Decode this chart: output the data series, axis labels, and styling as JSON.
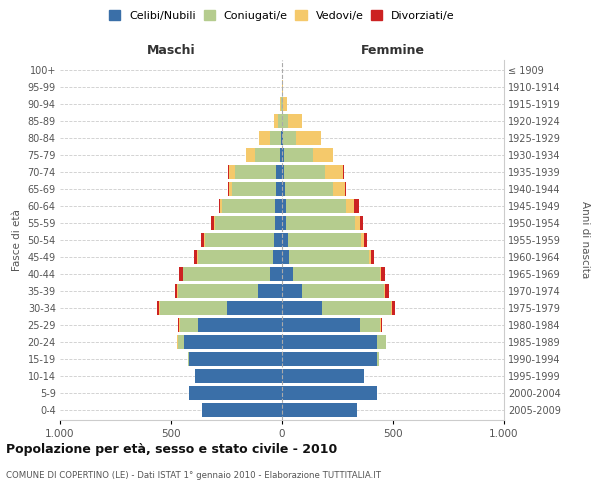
{
  "age_groups": [
    "0-4",
    "5-9",
    "10-14",
    "15-19",
    "20-24",
    "25-29",
    "30-34",
    "35-39",
    "40-44",
    "45-49",
    "50-54",
    "55-59",
    "60-64",
    "65-69",
    "70-74",
    "75-79",
    "80-84",
    "85-89",
    "90-94",
    "95-99",
    "100+"
  ],
  "birth_years": [
    "2005-2009",
    "2000-2004",
    "1995-1999",
    "1990-1994",
    "1985-1989",
    "1980-1984",
    "1975-1979",
    "1970-1974",
    "1965-1969",
    "1960-1964",
    "1955-1959",
    "1950-1954",
    "1945-1949",
    "1940-1944",
    "1935-1939",
    "1930-1934",
    "1925-1929",
    "1920-1924",
    "1915-1919",
    "1910-1914",
    "≤ 1909"
  ],
  "males": {
    "celibi": [
      360,
      420,
      390,
      420,
      440,
      380,
      250,
      110,
      55,
      40,
      35,
      30,
      30,
      25,
      25,
      10,
      5,
      2,
      1,
      0,
      0
    ],
    "coniugati": [
      0,
      0,
      0,
      5,
      30,
      80,
      300,
      360,
      390,
      340,
      310,
      270,
      240,
      200,
      185,
      110,
      50,
      15,
      3,
      1,
      0
    ],
    "vedovi": [
      0,
      0,
      0,
      0,
      5,
      5,
      5,
      2,
      2,
      3,
      5,
      6,
      8,
      15,
      30,
      40,
      50,
      20,
      4,
      1,
      0
    ],
    "divorziati": [
      0,
      0,
      0,
      0,
      0,
      5,
      8,
      12,
      15,
      15,
      15,
      15,
      5,
      3,
      3,
      0,
      0,
      0,
      0,
      0,
      0
    ]
  },
  "females": {
    "nubili": [
      340,
      430,
      370,
      430,
      430,
      350,
      180,
      90,
      50,
      30,
      25,
      20,
      18,
      15,
      10,
      8,
      5,
      2,
      1,
      0,
      0
    ],
    "coniugate": [
      0,
      0,
      0,
      5,
      40,
      90,
      310,
      370,
      390,
      360,
      330,
      310,
      270,
      215,
      185,
      130,
      60,
      25,
      5,
      1,
      0
    ],
    "vedove": [
      0,
      0,
      0,
      0,
      0,
      5,
      5,
      5,
      8,
      10,
      15,
      20,
      35,
      55,
      80,
      90,
      110,
      65,
      15,
      2,
      0
    ],
    "divorziate": [
      0,
      0,
      0,
      0,
      0,
      5,
      15,
      15,
      15,
      15,
      15,
      15,
      25,
      5,
      5,
      3,
      0,
      0,
      0,
      0,
      0
    ]
  },
  "colors": {
    "celibi": "#3a6fa8",
    "coniugati": "#b5cc8e",
    "vedovi": "#f5c96b",
    "divorziati": "#cc2222"
  },
  "legend_labels": [
    "Celibi/Nubili",
    "Coniugati/e",
    "Vedovi/e",
    "Divorziati/e"
  ],
  "title": "Popolazione per età, sesso e stato civile - 2010",
  "subtitle": "COMUNE DI COPERTINO (LE) - Dati ISTAT 1° gennaio 2010 - Elaborazione TUTTITALIA.IT",
  "xlabel_left": "Maschi",
  "xlabel_right": "Femmine",
  "ylabel_left": "Fasce di età",
  "ylabel_right": "Anni di nascita",
  "xlim": 1000,
  "xticklabels": [
    "1.000",
    "500",
    "0",
    "500",
    "1.000"
  ]
}
